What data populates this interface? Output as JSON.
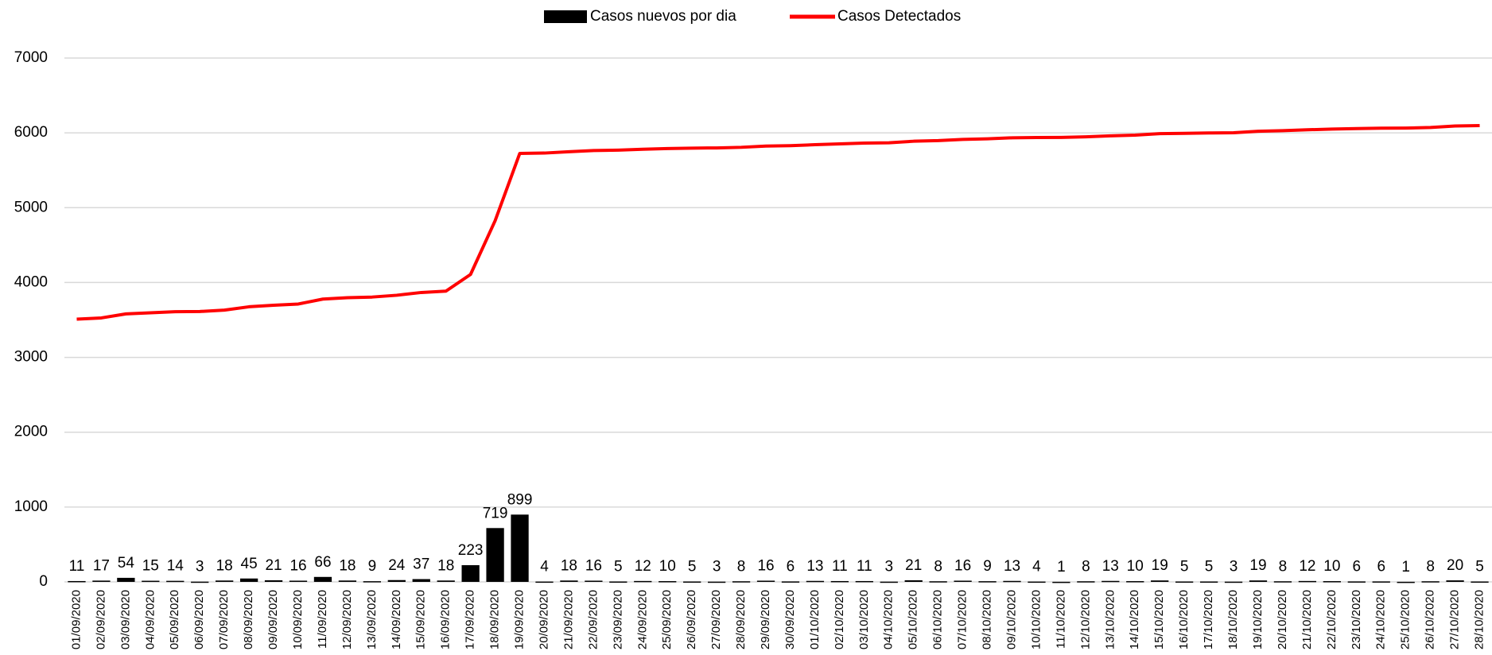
{
  "chart_data": {
    "type": "bar_line",
    "categories": [
      "01/09/2020",
      "02/09/2020",
      "03/09/2020",
      "04/09/2020",
      "05/09/2020",
      "06/09/2020",
      "07/09/2020",
      "08/09/2020",
      "09/09/2020",
      "10/09/2020",
      "11/09/2020",
      "12/09/2020",
      "13/09/2020",
      "14/09/2020",
      "15/09/2020",
      "16/09/2020",
      "17/09/2020",
      "18/09/2020",
      "19/09/2020",
      "20/09/2020",
      "21/09/2020",
      "22/09/2020",
      "23/09/2020",
      "24/09/2020",
      "25/09/2020",
      "26/09/2020",
      "27/09/2020",
      "28/09/2020",
      "29/09/2020",
      "30/09/2020",
      "01/10/2020",
      "02/10/2020",
      "03/10/2020",
      "04/10/2020",
      "05/10/2020",
      "06/10/2020",
      "07/10/2020",
      "08/10/2020",
      "09/10/2020",
      "10/10/2020",
      "11/10/2020",
      "12/10/2020",
      "13/10/2020",
      "14/10/2020",
      "15/10/2020",
      "16/10/2020",
      "17/10/2020",
      "18/10/2020",
      "19/10/2020",
      "20/10/2020",
      "21/10/2020",
      "22/10/2020",
      "23/10/2020",
      "24/10/2020",
      "25/10/2020",
      "26/10/2020",
      "27/10/2020",
      "28/10/2020"
    ],
    "series": [
      {
        "name": "Casos nuevos por dia",
        "type": "bar",
        "color": "#000000",
        "values": [
          11,
          17,
          54,
          15,
          14,
          3,
          18,
          45,
          21,
          16,
          66,
          18,
          9,
          24,
          37,
          18,
          223,
          719,
          899,
          4,
          18,
          16,
          5,
          12,
          10,
          5,
          3,
          8,
          16,
          6,
          13,
          11,
          11,
          3,
          21,
          8,
          16,
          9,
          13,
          4,
          1,
          8,
          13,
          10,
          19,
          5,
          5,
          3,
          19,
          8,
          12,
          10,
          6,
          6,
          1,
          8,
          20,
          5
        ]
      },
      {
        "name": "Casos Detectados",
        "type": "line",
        "color": "#ff0000",
        "values": [
          3510,
          3527,
          3581,
          3596,
          3610,
          3613,
          3631,
          3676,
          3697,
          3713,
          3779,
          3797,
          3806,
          3830,
          3867,
          3885,
          4108,
          4827,
          5726,
          5730,
          5748,
          5764,
          5769,
          5781,
          5791,
          5796,
          5799,
          5807,
          5823,
          5829,
          5842,
          5853,
          5864,
          5867,
          5888,
          5896,
          5912,
          5921,
          5934,
          5938,
          5939,
          5947,
          5960,
          5970,
          5989,
          5994,
          5999,
          6002,
          6021,
          6029,
          6041,
          6051,
          6057,
          6063,
          6064,
          6072,
          6092,
          6097
        ]
      }
    ],
    "ylim": [
      0,
      7000
    ],
    "yticks": [
      0,
      1000,
      2000,
      3000,
      4000,
      5000,
      6000,
      7000
    ],
    "grid": true,
    "legend": "top"
  }
}
